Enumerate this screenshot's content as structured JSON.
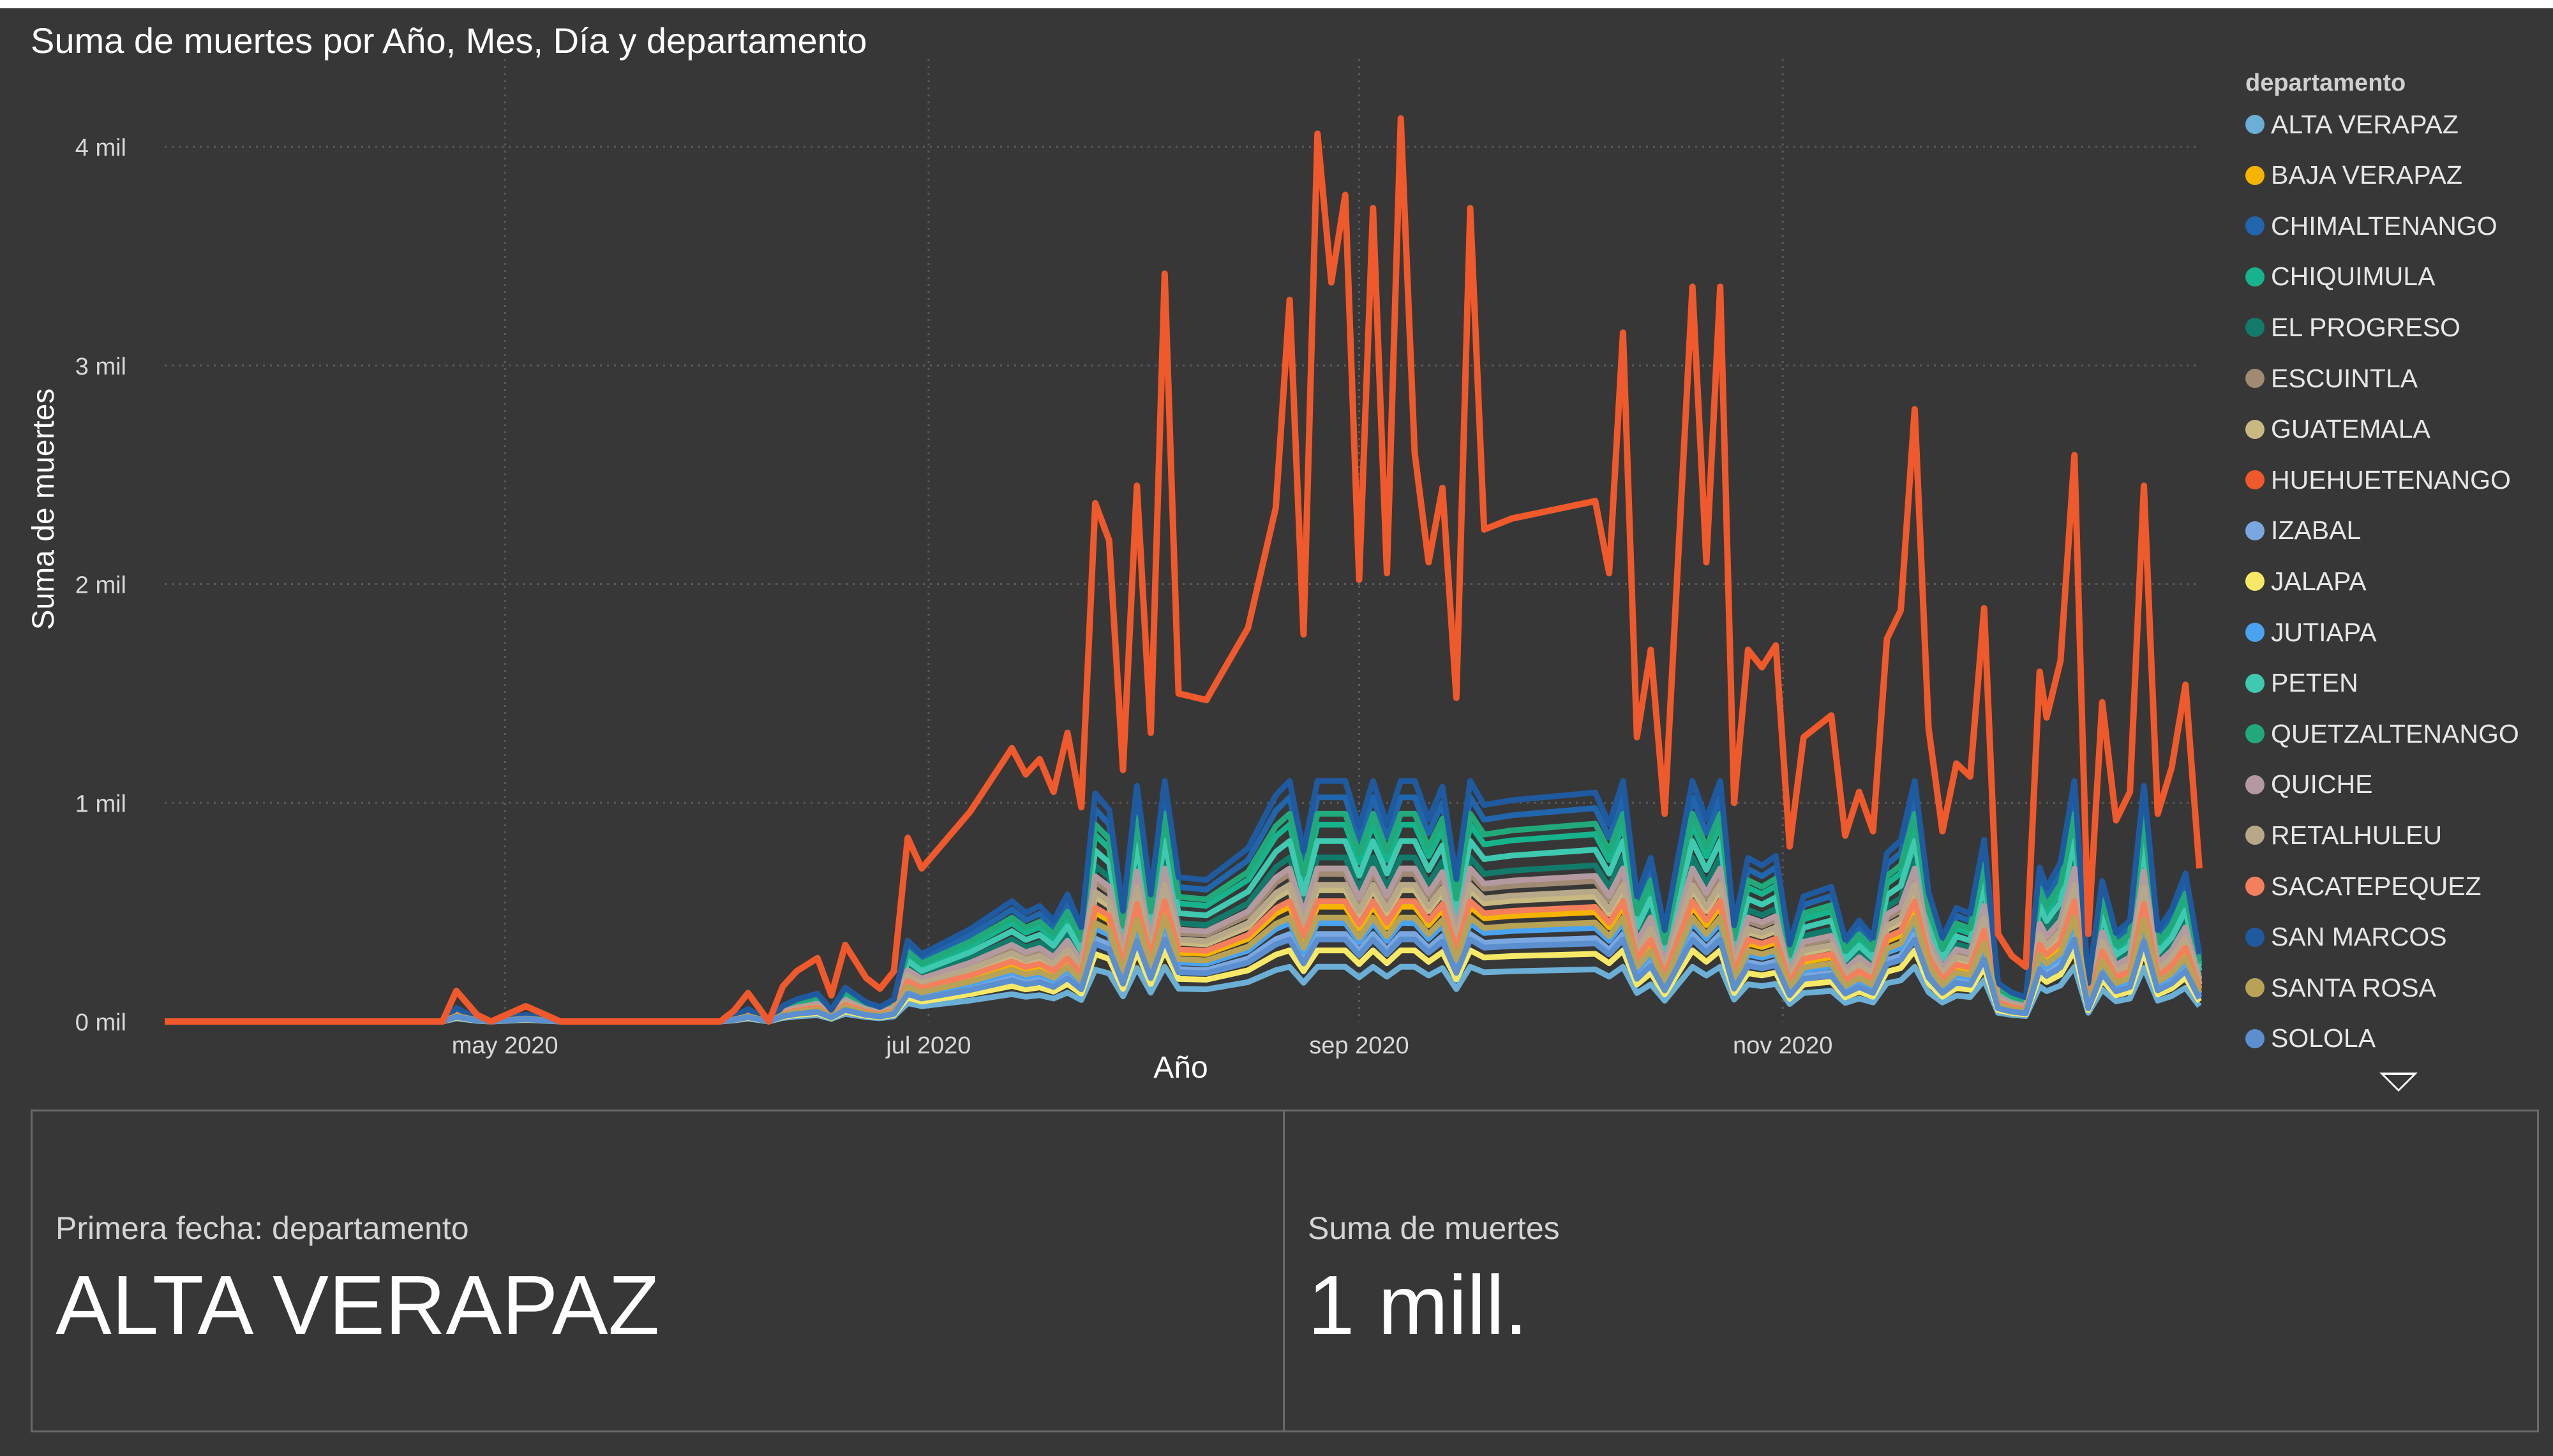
{
  "chart_title": "Suma de muertes por Año, Mes, Día y departamento",
  "legend_title": "departamento",
  "chart_data": {
    "type": "line",
    "title": "Suma de muertes por Año, Mes, Día y departamento",
    "xlabel": "Año",
    "ylabel": "Suma de muertes",
    "y_ticks": [
      {
        "value": 0,
        "label": "0 mil"
      },
      {
        "value": 1000,
        "label": "1 mil"
      },
      {
        "value": 2000,
        "label": "2 mil"
      },
      {
        "value": 3000,
        "label": "3 mil"
      },
      {
        "value": 4000,
        "label": "4 mil"
      }
    ],
    "x_ticks": [
      {
        "value": "2020-05-01",
        "label": "may 2020"
      },
      {
        "value": "2020-07-01",
        "label": "jul 2020"
      },
      {
        "value": "2020-09-01",
        "label": "sep 2020"
      },
      {
        "value": "2020-11-01",
        "label": "nov 2020"
      }
    ],
    "xlim": [
      "2020-03-13",
      "2020-12-31"
    ],
    "ylim": [
      0,
      4400
    ],
    "grid": true,
    "legend_position": "right",
    "series": [
      {
        "name": "ALTA VERAPAZ",
        "color": "#6baed6"
      },
      {
        "name": "BAJA VERAPAZ",
        "color": "#f4b400"
      },
      {
        "name": "CHIMALTENANGO",
        "color": "#2166ac"
      },
      {
        "name": "CHIQUIMULA",
        "color": "#16b38c"
      },
      {
        "name": "EL PROGRESO",
        "color": "#127a6a"
      },
      {
        "name": "ESCUINTLA",
        "color": "#a08a73"
      },
      {
        "name": "GUATEMALA",
        "color": "#c8b882"
      },
      {
        "name": "HUEHUETENANGO",
        "color": "#f0592b",
        "points": [
          [
            "2020-03-13",
            0
          ],
          [
            "2020-04-22",
            0
          ],
          [
            "2020-04-24",
            140
          ],
          [
            "2020-04-27",
            30
          ],
          [
            "2020-04-29",
            0
          ],
          [
            "2020-05-04",
            70
          ],
          [
            "2020-05-09",
            0
          ],
          [
            "2020-06-01",
            0
          ],
          [
            "2020-06-03",
            50
          ],
          [
            "2020-06-05",
            130
          ],
          [
            "2020-06-08",
            0
          ],
          [
            "2020-06-10",
            160
          ],
          [
            "2020-06-12",
            230
          ],
          [
            "2020-06-15",
            290
          ],
          [
            "2020-06-17",
            120
          ],
          [
            "2020-06-19",
            350
          ],
          [
            "2020-06-22",
            200
          ],
          [
            "2020-06-24",
            150
          ],
          [
            "2020-06-26",
            230
          ],
          [
            "2020-06-28",
            840
          ],
          [
            "2020-06-30",
            700
          ],
          [
            "2020-07-07",
            960
          ],
          [
            "2020-07-13",
            1250
          ],
          [
            "2020-07-15",
            1130
          ],
          [
            "2020-07-17",
            1200
          ],
          [
            "2020-07-19",
            1050
          ],
          [
            "2020-07-21",
            1320
          ],
          [
            "2020-07-23",
            980
          ],
          [
            "2020-07-25",
            2370
          ],
          [
            "2020-07-27",
            2200
          ],
          [
            "2020-07-29",
            1150
          ],
          [
            "2020-07-31",
            2450
          ],
          [
            "2020-08-02",
            1320
          ],
          [
            "2020-08-04",
            3420
          ],
          [
            "2020-08-06",
            1500
          ],
          [
            "2020-08-10",
            1470
          ],
          [
            "2020-08-16",
            1800
          ],
          [
            "2020-08-20",
            2350
          ],
          [
            "2020-08-22",
            3300
          ],
          [
            "2020-08-24",
            1770
          ],
          [
            "2020-08-26",
            4060
          ],
          [
            "2020-08-28",
            3380
          ],
          [
            "2020-08-30",
            3780
          ],
          [
            "2020-09-01",
            2020
          ],
          [
            "2020-09-03",
            3720
          ],
          [
            "2020-09-05",
            2050
          ],
          [
            "2020-09-07",
            4130
          ],
          [
            "2020-09-09",
            2600
          ],
          [
            "2020-09-11",
            2100
          ],
          [
            "2020-09-13",
            2440
          ],
          [
            "2020-09-15",
            1480
          ],
          [
            "2020-09-17",
            3720
          ],
          [
            "2020-09-19",
            2250
          ],
          [
            "2020-09-23",
            2300
          ],
          [
            "2020-10-05",
            2380
          ],
          [
            "2020-10-07",
            2050
          ],
          [
            "2020-10-09",
            3150
          ],
          [
            "2020-10-11",
            1300
          ],
          [
            "2020-10-13",
            1700
          ],
          [
            "2020-10-15",
            950
          ],
          [
            "2020-10-19",
            3360
          ],
          [
            "2020-10-21",
            2100
          ],
          [
            "2020-10-23",
            3360
          ],
          [
            "2020-10-25",
            1000
          ],
          [
            "2020-10-27",
            1700
          ],
          [
            "2020-10-29",
            1620
          ],
          [
            "2020-10-31",
            1720
          ],
          [
            "2020-11-02",
            800
          ],
          [
            "2020-11-04",
            1300
          ],
          [
            "2020-11-08",
            1400
          ],
          [
            "2020-11-10",
            850
          ],
          [
            "2020-11-12",
            1050
          ],
          [
            "2020-11-14",
            870
          ],
          [
            "2020-11-16",
            1750
          ],
          [
            "2020-11-18",
            1880
          ],
          [
            "2020-11-20",
            2800
          ],
          [
            "2020-11-22",
            1340
          ],
          [
            "2020-11-24",
            870
          ],
          [
            "2020-11-26",
            1180
          ],
          [
            "2020-11-28",
            1120
          ],
          [
            "2020-11-30",
            1890
          ],
          [
            "2020-12-02",
            400
          ],
          [
            "2020-12-04",
            300
          ],
          [
            "2020-12-06",
            250
          ],
          [
            "2020-12-08",
            1600
          ],
          [
            "2020-12-09",
            1390
          ],
          [
            "2020-12-11",
            1650
          ],
          [
            "2020-12-13",
            2590
          ],
          [
            "2020-12-15",
            400
          ],
          [
            "2020-12-17",
            1460
          ],
          [
            "2020-12-19",
            920
          ],
          [
            "2020-12-21",
            1050
          ],
          [
            "2020-12-23",
            2450
          ],
          [
            "2020-12-25",
            950
          ],
          [
            "2020-12-27",
            1160
          ],
          [
            "2020-12-29",
            1540
          ],
          [
            "2020-12-31",
            700
          ]
        ]
      },
      {
        "name": "IZABAL",
        "color": "#7aa7e0"
      },
      {
        "name": "JALAPA",
        "color": "#f7e967"
      },
      {
        "name": "JUTIAPA",
        "color": "#4aa3f0"
      },
      {
        "name": "PETEN",
        "color": "#3ec9b0"
      },
      {
        "name": "QUETZALTENANGO",
        "color": "#22a97a"
      },
      {
        "name": "QUICHE",
        "color": "#b49aa0"
      },
      {
        "name": "RETALHULEU",
        "color": "#b8a88a"
      },
      {
        "name": "SACATEPEQUEZ",
        "color": "#f47f5c"
      },
      {
        "name": "SAN MARCOS",
        "color": "#1f5aa0"
      },
      {
        "name": "SANTA ROSA",
        "color": "#b8a256"
      },
      {
        "name": "SOLOLA",
        "color": "#5b8fcf"
      }
    ]
  },
  "card_left": {
    "label": "Primera fecha: departamento",
    "value": "ALTA VERAPAZ"
  },
  "card_right": {
    "label": "Suma de muertes",
    "value": "1 mill."
  }
}
